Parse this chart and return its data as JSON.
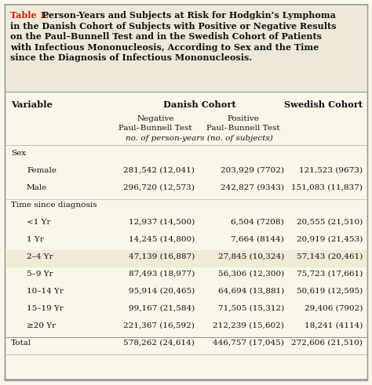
{
  "title_red": "Table 1.",
  "title_lines": [
    " Person-Years and Subjects at Risk for Hodgkin’s Lymphoma",
    "in the Danish Cohort of Subjects with Positive or Negative Results",
    "on the Paul–Bunnell Test and in the Swedish Cohort of Patients",
    "with Infectious Mononucleosis, According to Sex and the Time",
    "since the Diagnosis of Infectious Mononucleosis."
  ],
  "col_header_var": "Variable",
  "col_header_danish": "Danish Cohort",
  "col_header_swedish": "Swedish Cohort",
  "subhdr1_neg": "Negative",
  "subhdr1_pos": "Positive",
  "subhdr2_neg": "Paul–Bunnell Test",
  "subhdr2_pos": "Paul–Bunnell Test",
  "subhdr_italic": "no. of person-years (no. of subjects)",
  "sex_label": "Sex",
  "time_label": "Time since diagnosis",
  "total_label": "Total",
  "sections": [
    {
      "label": "Sex",
      "rows": [
        [
          "Female",
          "281,542 (12,041)",
          "203,929 (7702)",
          "121,523 (9673)",
          false
        ],
        [
          "Male",
          "296,720 (12,573)",
          "242,827 (9343)",
          "151,083 (11,837)",
          false
        ]
      ]
    },
    {
      "label": "Time since diagnosis",
      "rows": [
        [
          "<1 Yr",
          "12,937 (14,500)",
          "6,504 (7208)",
          "20,555 (21,510)",
          false
        ],
        [
          "1 Yr",
          "14,245 (14,800)",
          "7,664 (8144)",
          "20,919 (21,453)",
          false
        ],
        [
          "2–4 Yr",
          "47,139 (16,887)",
          "27,845 (10,324)",
          "57,143 (20,461)",
          true
        ],
        [
          "5–9 Yr",
          "87,493 (18,977)",
          "56,306 (12,300)",
          "75,723 (17,661)",
          false
        ],
        [
          "10–14 Yr",
          "95,914 (20,465)",
          "64,694 (13,881)",
          "50,619 (12,595)",
          false
        ],
        [
          "15–19 Yr",
          "99,167 (21,584)",
          "71,505 (15,312)",
          "29,406 (7902)",
          false
        ],
        [
          "≥20 Yr",
          "221,367 (16,592)",
          "212,239 (15,602)",
          "18,241 (4114)",
          false
        ]
      ]
    }
  ],
  "total_row": [
    "Total",
    "578,262 (24,614)",
    "446,757 (17,045)",
    "272,606 (21,510)"
  ],
  "bg_color": "#faf6ea",
  "title_bg_color": "#ede8d8",
  "shaded_color": "#f0ebd4",
  "border_color": "#999999",
  "divider_color": "#aaaaaa",
  "title_red_color": "#cc2200",
  "text_color": "#111111",
  "fs_title": 8.0,
  "fs_header": 8.2,
  "fs_body": 7.5
}
